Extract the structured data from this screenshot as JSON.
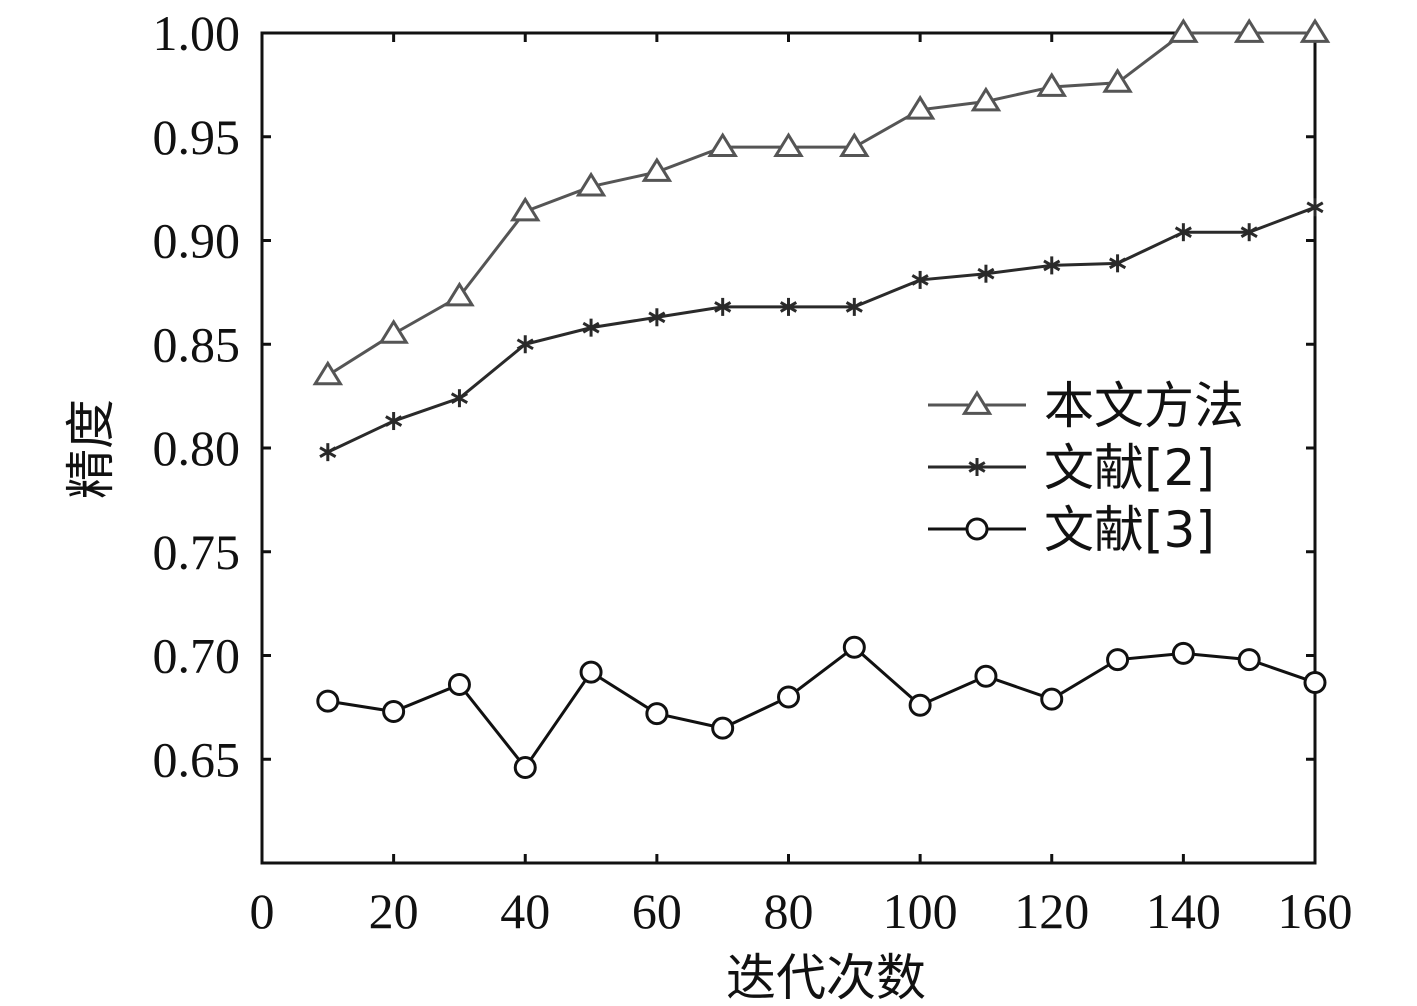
{
  "chart_data": {
    "type": "line",
    "title": "",
    "xlabel": "迭代次数",
    "ylabel": "精度",
    "xlim": [
      0,
      160
    ],
    "ylim": [
      0.6,
      1.0
    ],
    "x_ticks": [
      "0",
      "20",
      "40",
      "60",
      "80",
      "100",
      "120",
      "140",
      "160"
    ],
    "y_ticks": [
      "0.65",
      "0.70",
      "0.75",
      "0.80",
      "0.85",
      "0.90",
      "0.95",
      "1.00"
    ],
    "grid": false,
    "legend_position": "right",
    "x": [
      10,
      20,
      30,
      40,
      50,
      60,
      70,
      80,
      90,
      100,
      110,
      120,
      130,
      140,
      150,
      160
    ],
    "series": [
      {
        "name": "本文方法",
        "marker": "triangle",
        "color": "#555555",
        "values": [
          0.835,
          0.855,
          0.873,
          0.914,
          0.926,
          0.933,
          0.945,
          0.945,
          0.945,
          0.963,
          0.967,
          0.974,
          0.976,
          1.0,
          1.0,
          1.0
        ]
      },
      {
        "name": "文献[2]",
        "marker": "asterisk",
        "color": "#2a2a2a",
        "values": [
          0.798,
          0.813,
          0.824,
          0.85,
          0.858,
          0.863,
          0.868,
          0.868,
          0.868,
          0.881,
          0.884,
          0.888,
          0.889,
          0.904,
          0.904,
          0.916
        ]
      },
      {
        "name": "文献[3]",
        "marker": "circle",
        "color": "#111111",
        "values": [
          0.678,
          0.673,
          0.686,
          0.646,
          0.692,
          0.672,
          0.665,
          0.68,
          0.704,
          0.676,
          0.69,
          0.679,
          0.698,
          0.701,
          0.698,
          0.687
        ]
      }
    ]
  }
}
